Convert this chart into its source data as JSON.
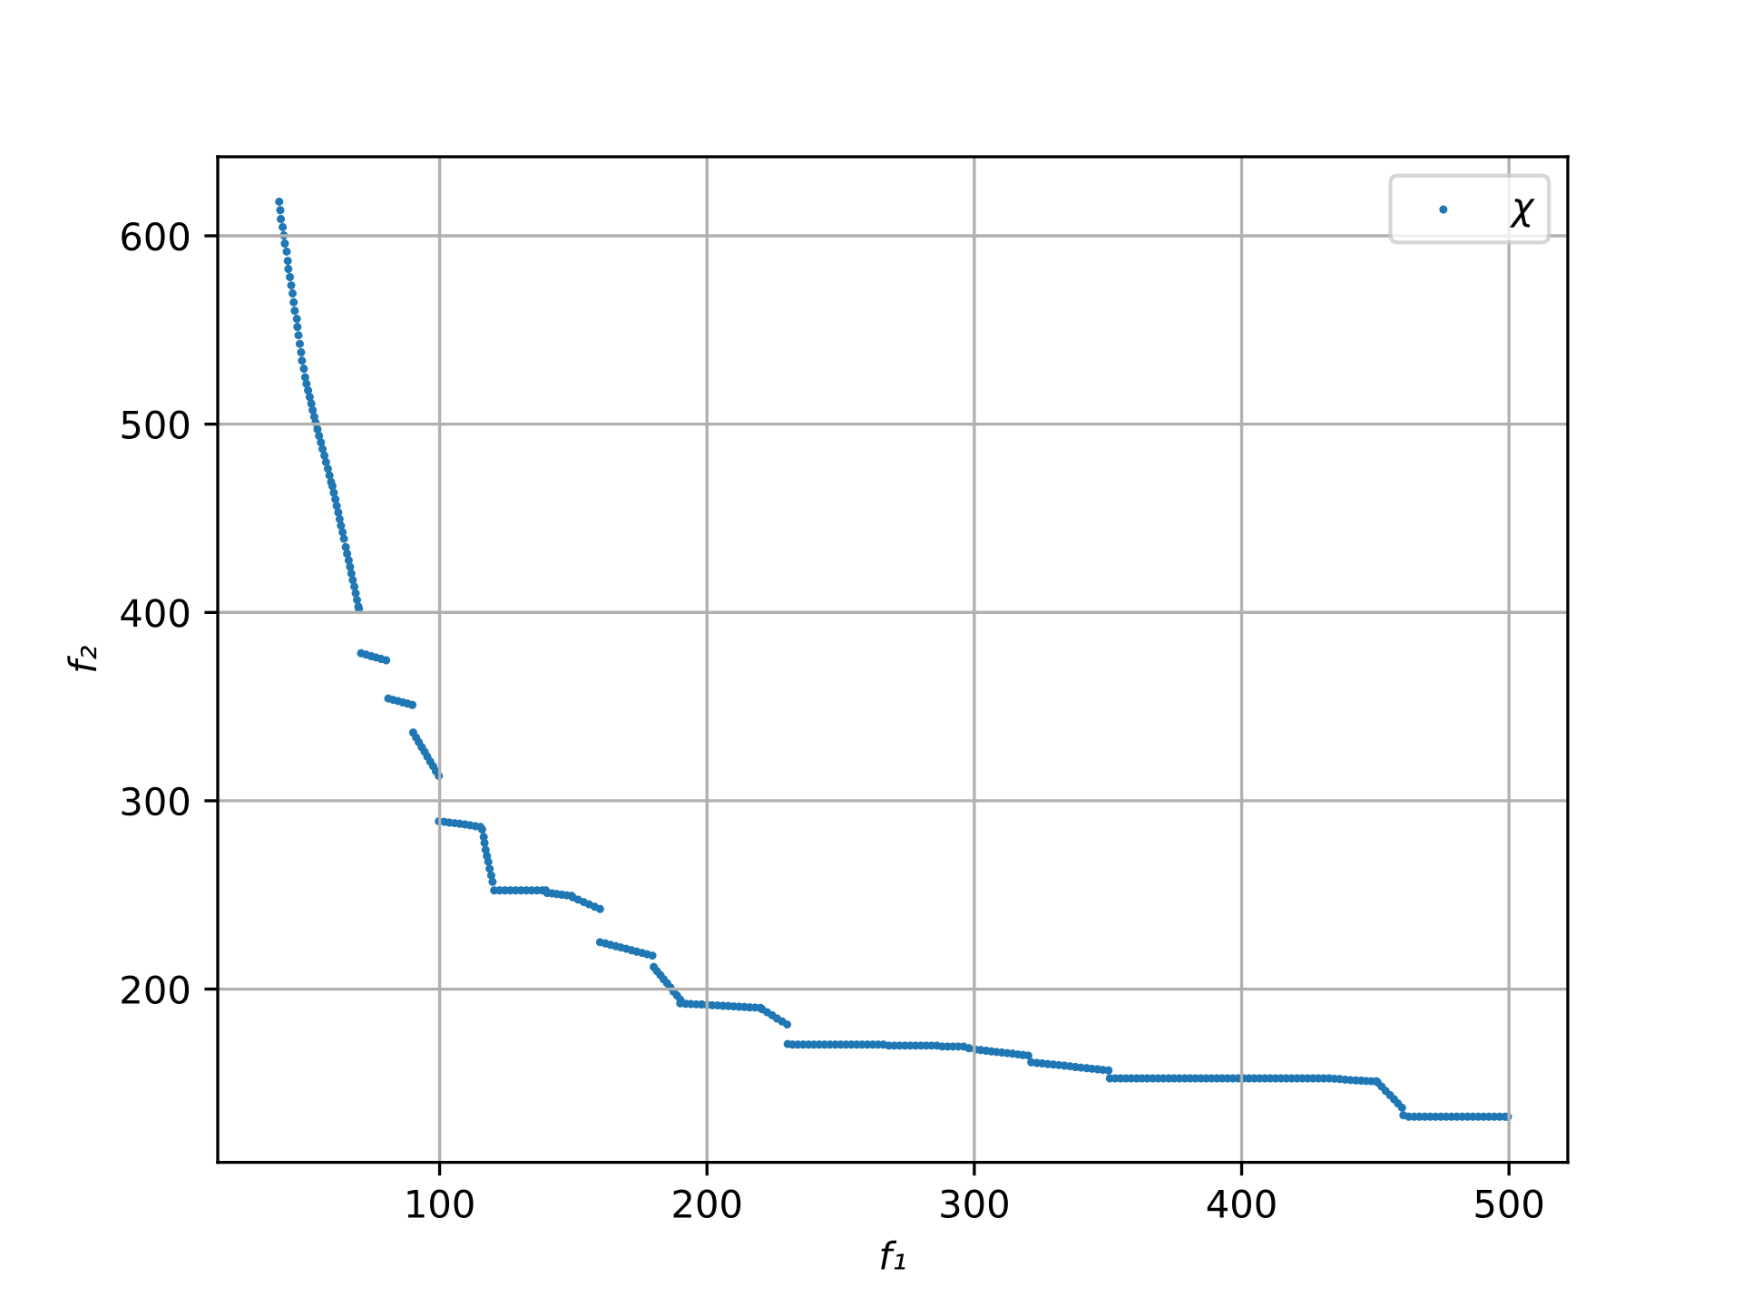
{
  "chart_data": {
    "type": "scatter",
    "xlabel": "f₁",
    "ylabel": "f₂",
    "x": [
      40.0,
      40.4,
      40.6,
      41.3,
      41.7,
      42.1,
      42.8,
      43.2,
      43.4,
      44.0,
      44.5,
      45.0,
      45.4,
      45.8,
      46.6,
      46.8,
      47.2,
      47.7,
      48.2,
      48.5,
      49.2,
      49.7,
      50.2,
      50.8,
      51.4,
      52.0,
      52.5,
      53.1,
      53.6,
      54.3,
      54.9,
      55.6,
      56.2,
      56.9,
      57.5,
      58.2,
      58.8,
      59.4,
      59.9,
      60.4,
      61.0,
      61.5,
      62.1,
      62.6,
      63.1,
      63.7,
      64.2,
      64.9,
      65.4,
      66.0,
      66.5,
      67.0,
      67.5,
      68.1,
      68.6,
      69.1,
      69.6,
      69.8,
      70.6,
      72.5,
      74.4,
      76.2,
      78.1,
      80.0,
      80.8,
      82.6,
      84.4,
      86.2,
      88.0,
      89.8,
      90.1,
      91.2,
      92.2,
      93.3,
      94.4,
      95.4,
      96.5,
      97.6,
      98.6,
      99.7,
      99.7,
      101.7,
      103.6,
      105.6,
      107.5,
      109.5,
      111.4,
      113.4,
      115.3,
      115.9,
      116.5,
      116.8,
      117.2,
      117.7,
      118.2,
      118.7,
      119.3,
      119.8,
      120.4,
      122.4,
      124.4,
      126.4,
      128.4,
      130.4,
      132.4,
      134.4,
      136.4,
      138.4,
      139.7,
      140.2,
      142.0,
      143.8,
      145.7,
      147.5,
      149.3,
      149.8,
      151.8,
      153.9,
      155.9,
      158.0,
      160.0,
      160.0,
      162.0,
      163.9,
      165.9,
      167.8,
      169.8,
      171.8,
      173.7,
      175.7,
      177.6,
      179.6,
      180.1,
      181.3,
      182.6,
      183.8,
      185.1,
      186.3,
      187.5,
      188.8,
      190.0,
      190.0,
      192.0,
      194.0,
      196.0,
      198.0,
      200.0,
      202.0,
      204.0,
      206.0,
      208.0,
      210.0,
      212.0,
      214.0,
      216.0,
      218.0,
      220.0,
      220.6,
      222.5,
      224.4,
      226.2,
      228.1,
      230.0,
      230.2,
      232,
      234,
      236,
      238,
      240,
      242,
      244,
      246,
      248,
      250,
      252,
      254,
      256,
      258,
      260,
      262,
      264,
      266,
      268,
      270,
      272,
      274,
      276,
      278,
      280,
      282,
      284,
      286,
      288,
      290,
      292,
      294,
      296,
      298.0,
      300.4,
      302.4,
      304.4,
      306.4,
      308.3,
      310.3,
      312.3,
      314.3,
      316.3,
      318.2,
      320.2,
      321.3,
      323.4,
      325.4,
      327.5,
      329.6,
      331.6,
      333.7,
      335.8,
      337.8,
      339.9,
      342.0,
      344.0,
      346.1,
      348.1,
      350.2,
      350.7,
      352.7,
      354.7,
      356.7,
      358.7,
      360.7,
      362.7,
      364.7,
      366.7,
      368.7,
      370.7,
      372.7,
      374.7,
      376.7,
      378.7,
      380.7,
      382.7,
      384.7,
      386.7,
      388.7,
      390.7,
      392.7,
      394.7,
      396.7,
      398.7,
      400.7,
      402.7,
      404.7,
      406.7,
      408.7,
      410.7,
      412.7,
      414.7,
      416.7,
      418.7,
      420.7,
      422.7,
      424.7,
      426.7,
      428.7,
      430.7,
      432.7,
      434.7,
      436.7,
      438.7,
      440.7,
      442.7,
      444.7,
      446.6,
      448.5,
      450.4,
      450.9,
      452.4,
      453.9,
      455.5,
      457.0,
      458.5,
      460.0,
      460.5,
      462.5,
      464.5,
      466.5,
      468.5,
      470.5,
      472.5,
      474.5,
      476.5,
      478.5,
      480.5,
      482.5,
      484.5,
      486.5,
      488.5,
      490.5,
      492.5,
      494.5,
      496.5,
      498.5,
      499.6
    ],
    "series": [
      {
        "name": "χ",
        "color": "#1f77b4",
        "values": [
          618.1,
          613.6,
          608.9,
          604.6,
          600.2,
          595.9,
          591.6,
          586.7,
          582.4,
          578.1,
          573.7,
          569.4,
          564.7,
          560.2,
          555.9,
          551.6,
          547.2,
          542.6,
          538.1,
          533.7,
          529.4,
          524.9,
          521.4,
          517.9,
          514.4,
          510.9,
          507.4,
          503.9,
          500.8,
          497.3,
          493.8,
          490.3,
          486.8,
          483.3,
          479.8,
          476.3,
          472.8,
          469.3,
          467.1,
          463.6,
          460.1,
          456.6,
          453.1,
          449.6,
          446.1,
          442.6,
          439.1,
          434.7,
          431.2,
          427.7,
          424.2,
          420.7,
          417.2,
          413.7,
          410.2,
          406.7,
          403.2,
          402.0,
          378.3,
          377.6,
          376.8,
          376.1,
          375.3,
          374.6,
          354.3,
          353.6,
          353.0,
          352.2,
          351.6,
          350.9,
          336.2,
          333.6,
          331.1,
          328.5,
          326.0,
          323.4,
          320.8,
          318.3,
          315.7,
          313.2,
          289.1,
          288.8,
          288.4,
          288.1,
          287.8,
          287.4,
          287.0,
          286.5,
          286.1,
          284.8,
          280.8,
          277.6,
          274.0,
          270.7,
          267.6,
          263.9,
          260.4,
          257.0,
          252.4,
          252.4,
          252.4,
          252.4,
          252.4,
          252.4,
          252.4,
          252.4,
          252.4,
          252.4,
          252.4,
          251.1,
          250.8,
          250.5,
          250.1,
          249.8,
          249.5,
          248.7,
          247.5,
          246.2,
          245.0,
          243.7,
          242.5,
          224.9,
          224.2,
          223.5,
          222.8,
          222.1,
          221.4,
          220.6,
          219.9,
          219.2,
          218.5,
          217.8,
          211.7,
          209.5,
          207.4,
          205.2,
          203.1,
          200.9,
          198.7,
          196.6,
          194.4,
          192.4,
          192.2,
          192.1,
          191.9,
          191.8,
          191.6,
          191.4,
          191.3,
          191.1,
          191.0,
          190.8,
          190.6,
          190.5,
          190.3,
          190.2,
          190.0,
          189.3,
          187.7,
          186.1,
          184.4,
          182.8,
          181.2,
          170.8,
          170.5,
          170.5,
          170.5,
          170.5,
          170.5,
          170.5,
          170.5,
          170.5,
          170.5,
          170.5,
          170.5,
          170.5,
          170.5,
          170.5,
          170.5,
          170.5,
          170.5,
          170.5,
          170.0,
          170.0,
          170.0,
          170.0,
          170.0,
          170.0,
          170.0,
          170.0,
          170.0,
          170.0,
          169.5,
          169.5,
          169.5,
          169.5,
          169.5,
          168.6,
          167.9,
          167.6,
          167.3,
          166.9,
          166.6,
          166.3,
          166.0,
          165.7,
          165.3,
          165.0,
          164.7,
          161.1,
          160.8,
          160.5,
          160.2,
          159.9,
          159.6,
          159.3,
          159.0,
          158.6,
          158.3,
          158.0,
          157.7,
          157.4,
          157.1,
          156.8,
          152.6,
          152.6,
          152.6,
          152.6,
          152.6,
          152.6,
          152.6,
          152.6,
          152.6,
          152.6,
          152.6,
          152.6,
          152.6,
          152.6,
          152.6,
          152.6,
          152.6,
          152.6,
          152.6,
          152.6,
          152.6,
          152.6,
          152.6,
          152.6,
          152.6,
          152.6,
          152.6,
          152.6,
          152.6,
          152.6,
          152.6,
          152.6,
          152.6,
          152.6,
          152.6,
          152.6,
          152.6,
          152.6,
          152.6,
          152.6,
          152.6,
          152.6,
          152.4,
          152.2,
          151.9,
          151.7,
          151.5,
          151.4,
          151.2,
          151.1,
          151.0,
          150.4,
          148.2,
          145.9,
          143.7,
          141.5,
          139.2,
          137.0,
          133.0,
          132.2,
          132.2,
          132.2,
          132.2,
          132.2,
          132.2,
          132.2,
          132.2,
          132.2,
          132.2,
          132.2,
          132.2,
          132.2,
          132.2,
          132.2,
          132.2,
          132.2,
          132.2,
          132.2,
          132.2
        ]
      }
    ],
    "xlim": [
      17,
      522
    ],
    "ylim": [
      108,
      642
    ],
    "xticks": [
      100,
      200,
      300,
      400,
      500
    ],
    "yticks": [
      200,
      300,
      400,
      500,
      600
    ],
    "grid": true,
    "legend": "top right",
    "marker": "circle"
  }
}
